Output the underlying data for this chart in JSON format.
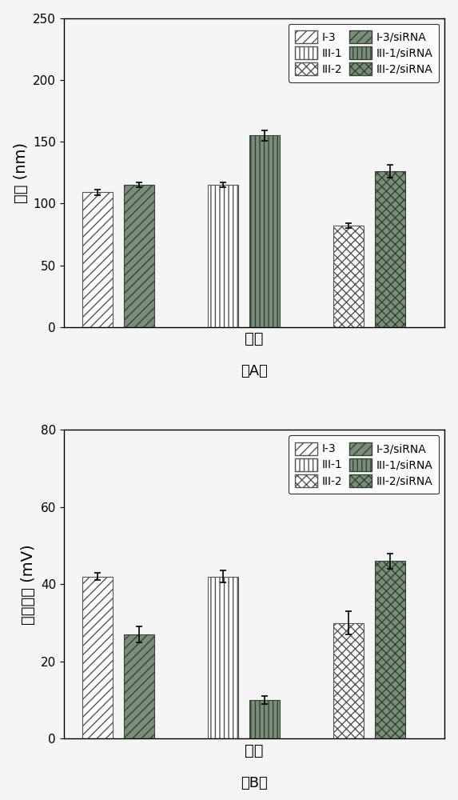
{
  "chart_A": {
    "title_label": "（A）",
    "ylabel": "粒径 (nm)",
    "xlabel": "样品",
    "ylim": [
      0,
      250
    ],
    "yticks": [
      0,
      50,
      100,
      150,
      200,
      250
    ],
    "bars": [
      {
        "label": "I-3",
        "value": 109,
        "error": 2,
        "x": 1.0,
        "hatch": "///",
        "facecolor": "#ffffff",
        "edgecolor": "#555555"
      },
      {
        "label": "I-3/siRNA",
        "value": 115,
        "error": 2,
        "x": 2.0,
        "hatch": "///",
        "facecolor": "#7a8c7a",
        "edgecolor": "#334433"
      },
      {
        "label": "III-1",
        "value": 115,
        "error": 2,
        "x": 4.0,
        "hatch": "|||",
        "facecolor": "#ffffff",
        "edgecolor": "#555555"
      },
      {
        "label": "III-1/siRNA",
        "value": 155,
        "error": 4,
        "x": 5.0,
        "hatch": "|||",
        "facecolor": "#7a8c7a",
        "edgecolor": "#334433"
      },
      {
        "label": "III-2",
        "value": 82,
        "error": 2,
        "x": 7.0,
        "hatch": "xxx",
        "facecolor": "#ffffff",
        "edgecolor": "#555555"
      },
      {
        "label": "III-2/siRNA",
        "value": 126,
        "error": 5,
        "x": 8.0,
        "hatch": "xxx",
        "facecolor": "#7a8c7a",
        "edgecolor": "#334433"
      }
    ]
  },
  "chart_B": {
    "title_label": "（B）",
    "ylabel": "表面电位 (mV)",
    "xlabel": "样品",
    "ylim": [
      0,
      80
    ],
    "yticks": [
      0,
      20,
      40,
      60,
      80
    ],
    "bars": [
      {
        "label": "I-3",
        "value": 42,
        "error": 1,
        "x": 1.0,
        "hatch": "///",
        "facecolor": "#ffffff",
        "edgecolor": "#555555"
      },
      {
        "label": "I-3/siRNA",
        "value": 27,
        "error": 2,
        "x": 2.0,
        "hatch": "///",
        "facecolor": "#7a8c7a",
        "edgecolor": "#334433"
      },
      {
        "label": "III-1",
        "value": 42,
        "error": 1.5,
        "x": 4.0,
        "hatch": "|||",
        "facecolor": "#ffffff",
        "edgecolor": "#555555"
      },
      {
        "label": "III-1/siRNA",
        "value": 10,
        "error": 1,
        "x": 5.0,
        "hatch": "|||",
        "facecolor": "#7a8c7a",
        "edgecolor": "#334433"
      },
      {
        "label": "III-2",
        "value": 30,
        "error": 3,
        "x": 7.0,
        "hatch": "xxx",
        "facecolor": "#ffffff",
        "edgecolor": "#555555"
      },
      {
        "label": "III-2/siRNA",
        "value": 46,
        "error": 2,
        "x": 8.0,
        "hatch": "xxx",
        "facecolor": "#7a8c7a",
        "edgecolor": "#334433"
      }
    ]
  },
  "legend_entries_left": [
    {
      "label": "I-3",
      "hatch": "///",
      "facecolor": "#ffffff",
      "edgecolor": "#555555"
    },
    {
      "label": "III-1",
      "hatch": "|||",
      "facecolor": "#ffffff",
      "edgecolor": "#555555"
    },
    {
      "label": "III-2",
      "hatch": "xxx",
      "facecolor": "#ffffff",
      "edgecolor": "#555555"
    }
  ],
  "legend_entries_right": [
    {
      "label": "I-3/siRNA",
      "hatch": "///",
      "facecolor": "#7a8c7a",
      "edgecolor": "#334433"
    },
    {
      "label": "III-1/siRNA",
      "hatch": "|||",
      "facecolor": "#7a8c7a",
      "edgecolor": "#334433"
    },
    {
      "label": "III-2/siRNA",
      "hatch": "xxx",
      "facecolor": "#7a8c7a",
      "edgecolor": "#334433"
    }
  ],
  "bar_width": 0.72,
  "bg_color": "#f5f5f5",
  "plot_bg": "#f5f5f5",
  "font_size_label": 14,
  "font_size_tick": 11,
  "font_size_legend": 10,
  "font_size_title": 13
}
